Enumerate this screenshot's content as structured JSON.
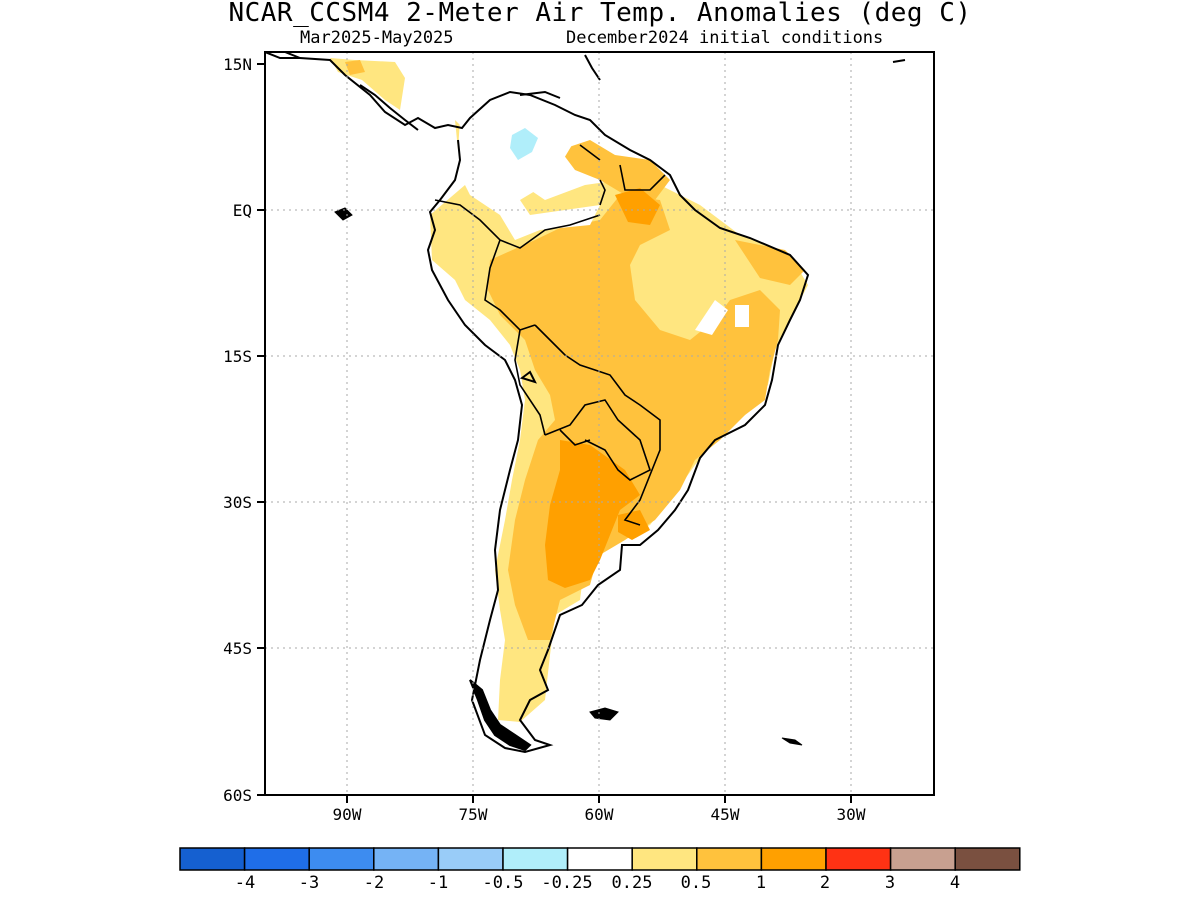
{
  "title": "NCAR_CCSM4 2-Meter Air Temp. Anomalies (deg C)",
  "subtitle_left": "Mar2025-May2025",
  "subtitle_right": "December2024 initial conditions",
  "y_axis_labels": [
    "15N",
    "EQ",
    "15S",
    "30S",
    "45S",
    "60S"
  ],
  "x_axis_labels": [
    "90W",
    "75W",
    "60W",
    "45W",
    "30W"
  ],
  "colorbar": {
    "colors": [
      "#1560d0",
      "#1f6ee8",
      "#3d8cf0",
      "#75b3f5",
      "#99ccf8",
      "#b0eefa",
      "#ffffff",
      "#ffe680",
      "#ffc23d",
      "#ffa000",
      "#ff3214",
      "#c8a090",
      "#7a5040"
    ],
    "labels": [
      "-4",
      "-3",
      "-2",
      "-1",
      "-0.5",
      "-0.25",
      "0.25",
      "0.5",
      "1",
      "2",
      "3",
      "4"
    ]
  },
  "legend_colors": {
    "light_yellow_0.25-0.5": "#ffe680",
    "light_orange_0.5-1": "#ffc23d",
    "orange_1-2": "#ffa000",
    "light_blue_-0.5--0.25": "#b0eefa"
  }
}
